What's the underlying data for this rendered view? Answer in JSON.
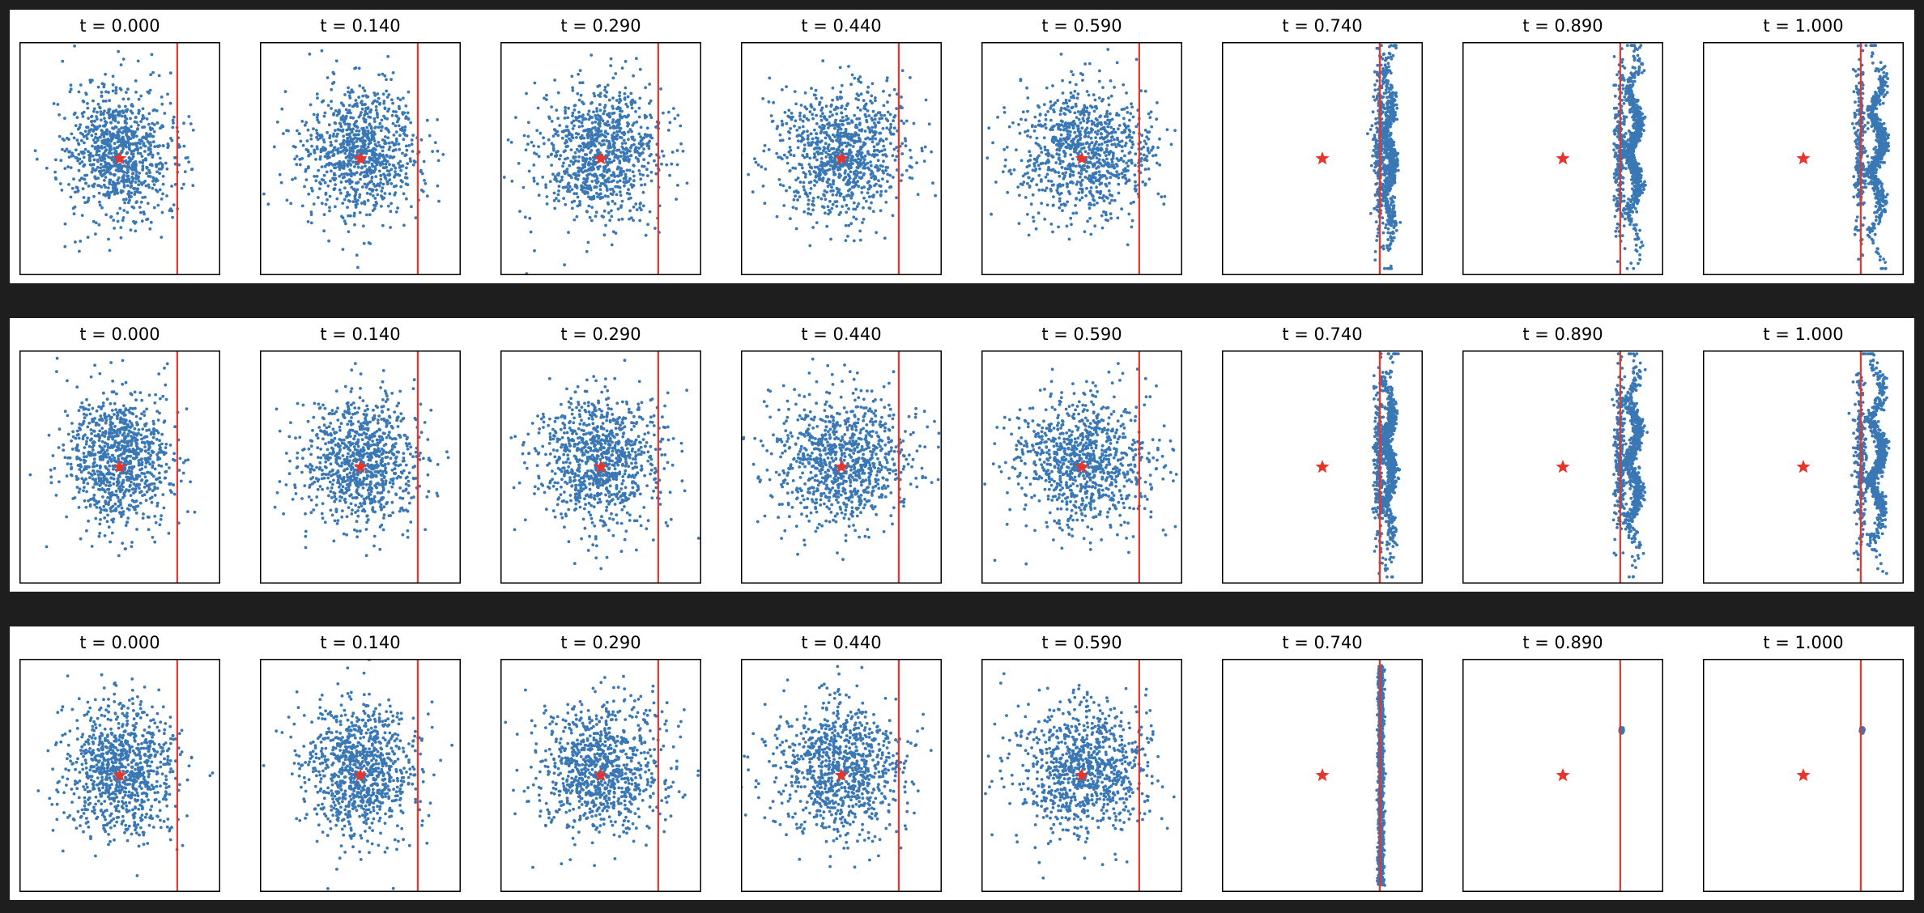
{
  "figure": {
    "rows": 3,
    "point_color": "#3a78b5",
    "marker_color": "#e8342b",
    "boundary_color": "#e8342b",
    "frame_color": "#000000"
  },
  "chart_data": [
    {
      "type": "scatter",
      "row": 1,
      "xlim": [
        -3.5,
        3.5
      ],
      "ylim": [
        -3.5,
        3.5
      ],
      "grid": false,
      "target_marker": {
        "shape": "star",
        "x": 0,
        "y": 0
      },
      "boundary_x": 2,
      "panels": [
        {
          "title": "t = 0.000",
          "t": 0.0,
          "n_points": 950
        },
        {
          "title": "t = 0.140",
          "t": 0.14,
          "n_points": 950
        },
        {
          "title": "t = 0.290",
          "t": 0.29,
          "n_points": 950
        },
        {
          "title": "t = 0.440",
          "t": 0.44,
          "n_points": 950
        },
        {
          "title": "t = 0.590",
          "t": 0.59,
          "n_points": 950
        },
        {
          "title": "t = 0.740",
          "t": 0.74,
          "n_points": 950
        },
        {
          "title": "t = 0.890",
          "t": 0.89,
          "n_points": 950
        },
        {
          "title": "t = 1.000",
          "t": 1.0,
          "n_points": 950
        }
      ]
    },
    {
      "type": "scatter",
      "row": 2,
      "xlim": [
        -3.5,
        3.5
      ],
      "ylim": [
        -3.5,
        3.5
      ],
      "grid": false,
      "target_marker": {
        "shape": "star",
        "x": 0,
        "y": 0
      },
      "boundary_x": 2,
      "panels": [
        {
          "title": "t = 0.000",
          "t": 0.0,
          "n_points": 950
        },
        {
          "title": "t = 0.140",
          "t": 0.14,
          "n_points": 950
        },
        {
          "title": "t = 0.290",
          "t": 0.29,
          "n_points": 950
        },
        {
          "title": "t = 0.440",
          "t": 0.44,
          "n_points": 950
        },
        {
          "title": "t = 0.590",
          "t": 0.59,
          "n_points": 950
        },
        {
          "title": "t = 0.740",
          "t": 0.74,
          "n_points": 950
        },
        {
          "title": "t = 0.890",
          "t": 0.89,
          "n_points": 950
        },
        {
          "title": "t = 1.000",
          "t": 1.0,
          "n_points": 950
        }
      ]
    },
    {
      "type": "scatter",
      "row": 3,
      "xlim": [
        -3.5,
        3.5
      ],
      "ylim": [
        -3.5,
        3.5
      ],
      "grid": false,
      "target_marker": {
        "shape": "star",
        "x": 0,
        "y": 0
      },
      "boundary_x": 2,
      "panels": [
        {
          "title": "t = 0.000",
          "t": 0.0,
          "n_points": 950
        },
        {
          "title": "t = 0.140",
          "t": 0.14,
          "n_points": 950
        },
        {
          "title": "t = 0.290",
          "t": 0.29,
          "n_points": 950
        },
        {
          "title": "t = 0.440",
          "t": 0.44,
          "n_points": 950
        },
        {
          "title": "t = 0.590",
          "t": 0.59,
          "n_points": 950
        },
        {
          "title": "t = 0.740",
          "t": 0.74,
          "n_points": 950
        },
        {
          "title": "t = 0.890",
          "t": 0.89,
          "n_points": 950
        },
        {
          "title": "t = 1.000",
          "t": 1.0,
          "n_points": 950
        }
      ]
    }
  ]
}
